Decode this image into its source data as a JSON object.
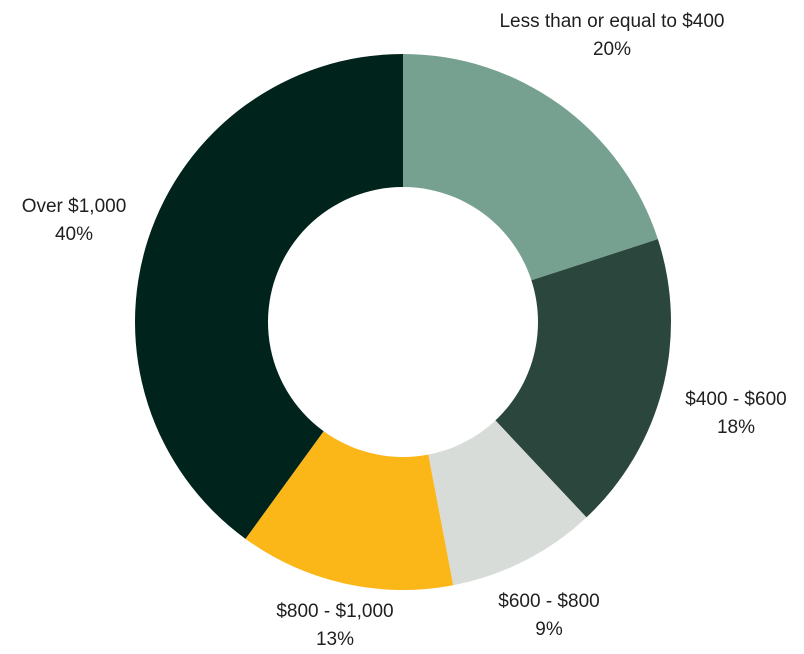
{
  "chart_data": {
    "type": "pie",
    "title": "",
    "donut": true,
    "slices": [
      {
        "label": "Less than or equal to $400",
        "value": 20,
        "value_label": "20%",
        "color": "#76a190"
      },
      {
        "label": "$400 - $600",
        "value": 18,
        "value_label": "18%",
        "color": "#2b473d"
      },
      {
        "label": "$600 - $800",
        "value": 9,
        "value_label": "9%",
        "color": "#d8dcd9"
      },
      {
        "label": "$800 - $1,000",
        "value": 13,
        "value_label": "13%",
        "color": "#fbb618"
      },
      {
        "label": "Over $1,000",
        "value": 40,
        "value_label": "40%",
        "color": "#00231b"
      }
    ]
  }
}
